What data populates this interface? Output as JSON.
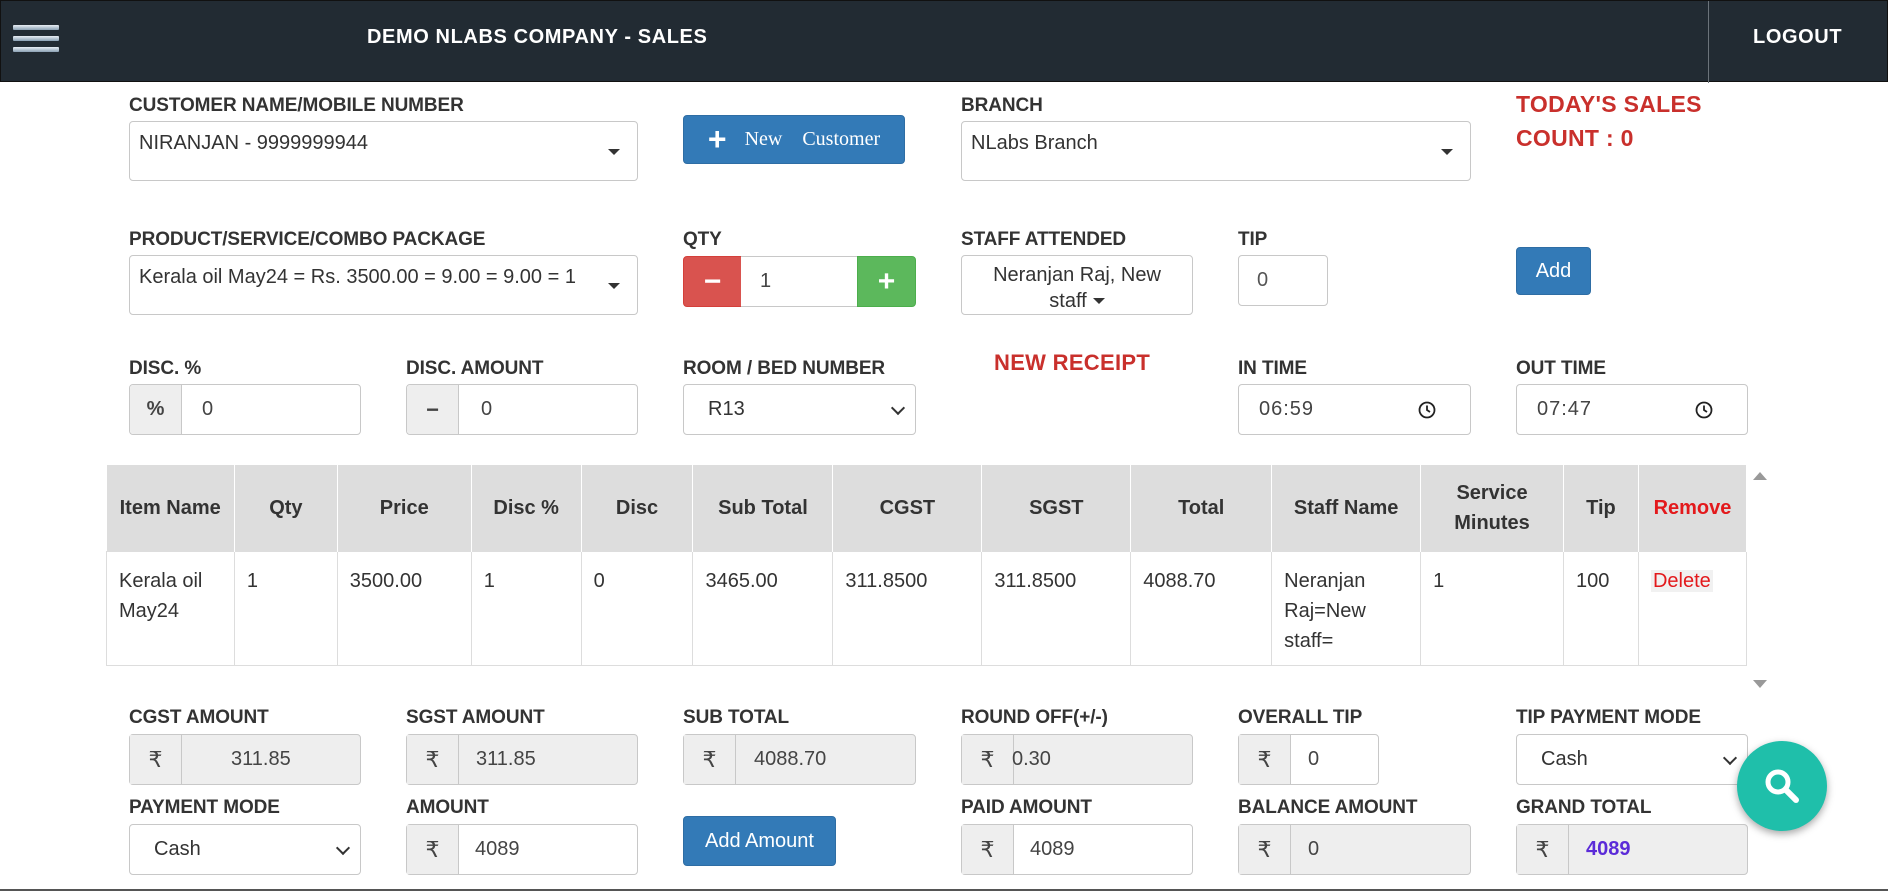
{
  "header": {
    "title": "DEMO NLABS COMPANY - SALES",
    "logout": "LOGOUT"
  },
  "customer": {
    "label": "CUSTOMER NAME/MOBILE NUMBER",
    "value": "NIRANJAN - 9999999944"
  },
  "new_customer": {
    "plus": "+",
    "word1": "New",
    "word2": "Customer"
  },
  "branch": {
    "label": "BRANCH",
    "value": "NLabs Branch"
  },
  "todays_sales": {
    "line1": "TODAY'S SALES",
    "line2": "COUNT : 0"
  },
  "product": {
    "label": "PRODUCT/SERVICE/COMBO PACKAGE",
    "value": "Kerala oil May24 = Rs. 3500.00 = 9.00 = 9.00 = 1"
  },
  "qty": {
    "label": "QTY",
    "minus": "−",
    "value": "1",
    "plus": "+"
  },
  "staff": {
    "label": "STAFF ATTENDED",
    "line1": "Neranjan Raj, New",
    "line2": "staff"
  },
  "tip": {
    "label": "TIP",
    "placeholder": "0"
  },
  "add_button": "Add",
  "disc_pct": {
    "label": "DISC. %",
    "icon": "%",
    "placeholder": "0"
  },
  "disc_amount": {
    "label": "DISC. AMOUNT",
    "icon": "−",
    "placeholder": "0"
  },
  "room": {
    "label": "ROOM / BED NUMBER",
    "value": "R13"
  },
  "new_receipt": "NEW RECEIPT",
  "in_time": {
    "label": "IN TIME",
    "value": "06:59"
  },
  "out_time": {
    "label": "OUT TIME",
    "value": "07:47"
  },
  "table": {
    "headers": [
      "Item Name",
      "Qty",
      "Price",
      "Disc %",
      "Disc",
      "Sub Total",
      "CGST",
      "SGST",
      "Total",
      "Staff Name",
      "Service Minutes",
      "Tip",
      "Remove"
    ],
    "rows": [
      [
        "Kerala oil May24",
        "1",
        "3500.00",
        "1",
        "0",
        "3465.00",
        "311.8500",
        "311.8500",
        "4088.70",
        "Neranjan Raj=New staff=",
        "1",
        "100",
        "Delete"
      ]
    ]
  },
  "currency": "₹",
  "cgst": {
    "label": "CGST AMOUNT",
    "value": "311.85"
  },
  "sgst": {
    "label": "SGST AMOUNT",
    "value": "311.85"
  },
  "sub_total": {
    "label": "SUB TOTAL",
    "value": "4088.70"
  },
  "round_off": {
    "label": "ROUND OFF(+/-)",
    "value": "0.30"
  },
  "overall_tip": {
    "label": "OVERALL TIP",
    "value": "0"
  },
  "tip_payment": {
    "label": "TIP PAYMENT MODE",
    "value": "Cash"
  },
  "payment_mode": {
    "label": "PAYMENT MODE",
    "value": "Cash"
  },
  "amount": {
    "label": "AMOUNT",
    "value": "4089"
  },
  "add_amount": "Add Amount",
  "paid_amount": {
    "label": "PAID AMOUNT",
    "value": "4089"
  },
  "balance": {
    "label": "BALANCE AMOUNT",
    "value": "0"
  },
  "grand_total": {
    "label": "GRAND TOTAL",
    "value": "4089"
  },
  "colors": {
    "topbar": "#222b33",
    "primary": "#337ab7",
    "danger": "#d9534f",
    "success": "#5cb85c",
    "accent_red": "#c9302c",
    "fab": "#1fbfaa",
    "grand_total": "#5b2bd8"
  }
}
